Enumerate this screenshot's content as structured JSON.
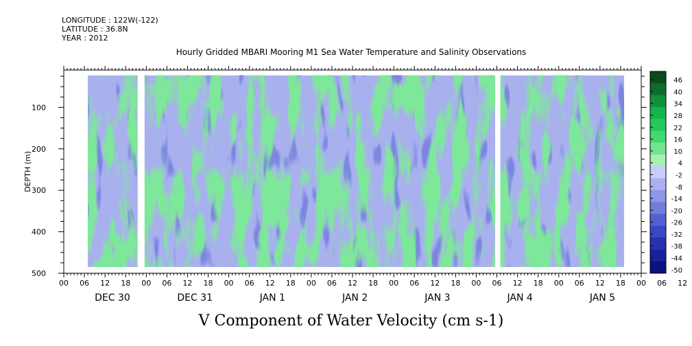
{
  "header": {
    "longitude": "LONGITUDE : 122W(-122)",
    "latitude": "LATITUDE : 36.8N",
    "year": "YEAR : 2012"
  },
  "chart_data": {
    "type": "heatmap",
    "title": "Hourly Gridded MBARI Mooring M1 Sea Water Temperature and Salinity Observations",
    "subtitle": "V Component of Water Velocity (cm s-1)",
    "ylabel": "DEPTH (m)",
    "ylim": [
      500,
      10
    ],
    "y_ticks": [
      100,
      200,
      300,
      400,
      500
    ],
    "x_hour_labels": [
      "00",
      "06",
      "12",
      "18",
      "00",
      "06",
      "12",
      "18",
      "00",
      "06",
      "12",
      "18",
      "00",
      "06",
      "12",
      "18",
      "00",
      "06",
      "12",
      "18",
      "00",
      "06",
      "12",
      "18",
      "00",
      "06",
      "12",
      "18",
      "00",
      "06",
      "12",
      "18",
      "00"
    ],
    "x_day_labels": [
      "DEC 30",
      "DEC 31",
      "JAN  1",
      "JAN  2",
      "JAN  3",
      "JAN  4",
      "JAN  5"
    ],
    "x_range_hours": [
      0,
      168
    ],
    "data_start_hour": 7,
    "data_end_hour": 163,
    "data_depth_range": [
      23,
      485
    ],
    "gaps_hours": [
      [
        21.5,
        23.5
      ],
      [
        125.5,
        127
      ]
    ],
    "colorbar": {
      "labels": [
        "46",
        "40",
        "34",
        "28",
        "22",
        "16",
        "10",
        "4",
        "-2",
        "-8",
        "-14",
        "-20",
        "-26",
        "-32",
        "-38",
        "-44",
        "-50"
      ],
      "colors": [
        "#0c4a20",
        "#0f6c2e",
        "#12903c",
        "#16b44a",
        "#22c85a",
        "#44d870",
        "#74e48e",
        "#a6f0b4",
        "#c8ccf8",
        "#aab0f0",
        "#8e96e8",
        "#727cdc",
        "#5460d2",
        "#3a48c4",
        "#2632b0",
        "#18209a",
        "#0c1280"
      ]
    }
  }
}
